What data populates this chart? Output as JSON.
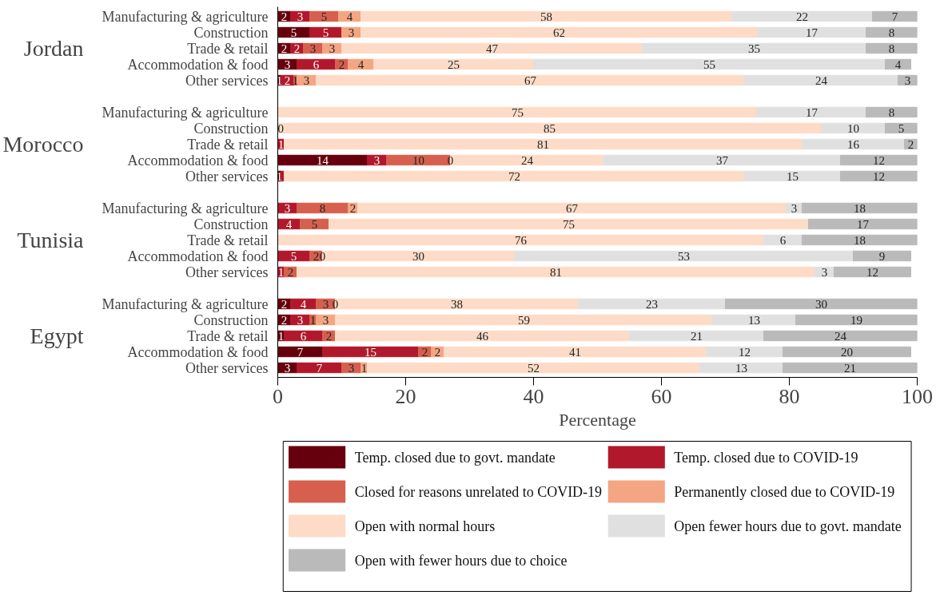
{
  "chart_data": {
    "type": "bar",
    "orientation": "horizontal",
    "stacked": true,
    "xlabel": "Percentage",
    "xlim": [
      0,
      100
    ],
    "xticks": [
      0,
      20,
      40,
      60,
      80,
      100
    ],
    "grid": false,
    "legend": "bottom",
    "annotations": [
      "Jordan",
      "Morocco",
      "Tunisia",
      "Egypt"
    ],
    "categories": [
      "Manufacturing & agriculture",
      "Construction",
      "Trade & retail",
      "Accommodation & food",
      "Other services",
      null,
      "Manufacturing & agriculture",
      "Construction",
      "Trade & retail",
      "Accommodation & food",
      "Other services",
      null,
      "Manufacturing & agriculture",
      "Construction",
      "Trade & retail",
      "Accommodation & food",
      "Other services",
      null,
      "Manufacturing & agriculture",
      "Construction",
      "Trade & retail",
      "Accommodation & food",
      "Other services"
    ],
    "series": [
      {
        "name": "Temp. closed due to govt. mandate",
        "color": "#67000d",
        "values": [
          2,
          5,
          2,
          3,
          0.5,
          null,
          0,
          0,
          0,
          14,
          0.5,
          null,
          0,
          0,
          0,
          0,
          0,
          null,
          2,
          2,
          1,
          7,
          3
        ],
        "value_labels": [
          "2",
          "5",
          "2",
          "3",
          "1",
          null,
          null,
          "0",
          null,
          "14",
          "1",
          null,
          null,
          null,
          null,
          null,
          null,
          null,
          "2",
          "2",
          "1",
          "7",
          "3"
        ]
      },
      {
        "name": "Temp. closed due to COVID-19",
        "color": "#b2182b",
        "values": [
          3,
          5,
          2,
          6,
          2,
          null,
          0,
          0,
          1,
          3,
          0.5,
          null,
          3,
          3.5,
          0,
          5,
          1,
          null,
          4,
          3,
          6,
          15,
          7
        ],
        "value_labels": [
          "3",
          "5",
          "2",
          "6",
          "2",
          null,
          null,
          null,
          "1",
          "3",
          null,
          null,
          "3",
          "4",
          null,
          "5",
          "1",
          null,
          "4",
          "3",
          "6",
          "15",
          "7"
        ]
      },
      {
        "name": "Closed for reasons unrelated to COVID-19",
        "color": "#d6604d",
        "values": [
          4.5,
          0,
          3,
          2,
          0.5,
          null,
          0,
          0,
          0,
          10,
          0,
          null,
          8,
          4.5,
          0,
          2,
          2,
          null,
          3,
          1,
          2,
          2,
          3
        ],
        "value_labels": [
          "5",
          null,
          "3",
          "2",
          "1",
          null,
          null,
          null,
          null,
          "10",
          null,
          null,
          "8",
          "5",
          null,
          "2",
          "2",
          null,
          "3",
          "1",
          "2",
          "2",
          "3"
        ]
      },
      {
        "name": "Permanently closed due to COVID-19",
        "color": "#f4a582",
        "values": [
          3.5,
          3,
          3,
          4,
          3,
          null,
          0,
          0,
          0,
          0,
          0,
          null,
          1.5,
          0,
          0,
          0,
          0,
          null,
          0,
          3,
          0,
          2,
          1
        ],
        "value_labels": [
          "4",
          "3",
          "3",
          "4",
          "3",
          null,
          null,
          null,
          null,
          "0",
          null,
          null,
          "2",
          null,
          null,
          "0",
          null,
          null,
          "0",
          "3",
          null,
          "2",
          "1"
        ]
      },
      {
        "name": "Open with normal hours",
        "color": "#fddbc7",
        "values": [
          58,
          62,
          47,
          25,
          67,
          null,
          75,
          85,
          81,
          24,
          72,
          null,
          67,
          75,
          76,
          30,
          81,
          null,
          38,
          59,
          46,
          41,
          52
        ],
        "value_labels": [
          "58",
          "62",
          "47",
          "25",
          "67",
          null,
          "75",
          "85",
          "81",
          "24",
          "72",
          null,
          "67",
          "75",
          "76",
          "30",
          "81",
          null,
          "38",
          "59",
          "46",
          "41",
          "52"
        ]
      },
      {
        "name": "Open fewer hours due to govt. mandate",
        "color": "#e0e0e0",
        "values": [
          22,
          17,
          35,
          55,
          24,
          null,
          17,
          10,
          16,
          37,
          15,
          null,
          2.5,
          0,
          6,
          53,
          3,
          null,
          23,
          13,
          21,
          12,
          13
        ],
        "value_labels": [
          "22",
          "17",
          "35",
          "55",
          "24",
          null,
          "17",
          "10",
          "16",
          "37",
          "15",
          null,
          "3",
          null,
          "6",
          "53",
          "3",
          null,
          "23",
          "13",
          "21",
          "12",
          "13"
        ]
      },
      {
        "name": "Open with fewer hours due to choice",
        "color": "#bababa",
        "values": [
          7,
          8,
          8,
          4,
          3,
          null,
          8,
          5,
          2,
          12,
          12,
          null,
          18,
          17,
          18,
          9,
          12,
          null,
          30,
          19,
          24,
          20,
          21
        ],
        "value_labels": [
          "7",
          "8",
          "8",
          "4",
          "3",
          null,
          "8",
          "5",
          "2",
          "12",
          "12",
          null,
          "18",
          "17",
          "18",
          "9",
          "12",
          null,
          "30",
          "19",
          "24",
          "20",
          "21"
        ]
      }
    ]
  }
}
